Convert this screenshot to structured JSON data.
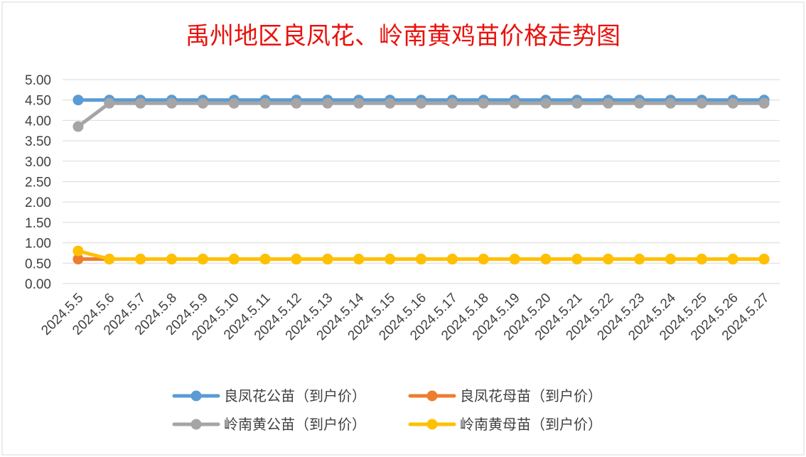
{
  "chart_data": {
    "type": "line",
    "title": "禹州地区良凤花、岭南黄鸡苗价格走势图",
    "categories": [
      "2024.5.5",
      "2024.5.6",
      "2024.5.7",
      "2024.5.8",
      "2024.5.9",
      "2024.5.10",
      "2024.5.11",
      "2024.5.12",
      "2024.5.13",
      "2024.5.14",
      "2024.5.15",
      "2024.5.16",
      "2024.5.17",
      "2024.5.18",
      "2024.5.19",
      "2024.5.20",
      "2024.5.21",
      "2024.5.22",
      "2024.5.23",
      "2024.5.24",
      "2024.5.25",
      "2024.5.26",
      "2024.5.27"
    ],
    "y_ticks": [
      "0.00",
      "0.50",
      "1.00",
      "1.50",
      "2.00",
      "2.50",
      "3.00",
      "3.50",
      "4.00",
      "4.50",
      "5.00"
    ],
    "ylim": [
      0,
      5
    ],
    "grid": true,
    "legend_position": "bottom",
    "series": [
      {
        "name": "良凤花公苗（到户价）",
        "color": "#5b9bd5",
        "values": [
          4.5,
          4.5,
          4.5,
          4.5,
          4.5,
          4.5,
          4.5,
          4.5,
          4.5,
          4.5,
          4.5,
          4.5,
          4.5,
          4.5,
          4.5,
          4.5,
          4.5,
          4.5,
          4.5,
          4.5,
          4.5,
          4.5,
          4.5
        ]
      },
      {
        "name": "良凤花母苗（到户价）",
        "color": "#ed7d31",
        "values": [
          0.6,
          0.6,
          0.6,
          0.6,
          0.6,
          0.6,
          0.6,
          0.6,
          0.6,
          0.6,
          0.6,
          0.6,
          0.6,
          0.6,
          0.6,
          0.6,
          0.6,
          0.6,
          0.6,
          0.6,
          0.6,
          0.6,
          0.6
        ]
      },
      {
        "name": "岭南黄公苗（到户价）",
        "color": "#a5a5a5",
        "values": [
          3.85,
          4.42,
          4.42,
          4.42,
          4.42,
          4.42,
          4.42,
          4.42,
          4.42,
          4.42,
          4.42,
          4.42,
          4.42,
          4.42,
          4.42,
          4.42,
          4.42,
          4.42,
          4.42,
          4.42,
          4.42,
          4.42,
          4.42
        ]
      },
      {
        "name": "岭南黄母苗（到户价）",
        "color": "#ffc000",
        "values": [
          0.8,
          0.6,
          0.6,
          0.6,
          0.6,
          0.6,
          0.6,
          0.6,
          0.6,
          0.6,
          0.6,
          0.6,
          0.6,
          0.6,
          0.6,
          0.6,
          0.6,
          0.6,
          0.6,
          0.6,
          0.6,
          0.6,
          0.6
        ]
      }
    ]
  }
}
